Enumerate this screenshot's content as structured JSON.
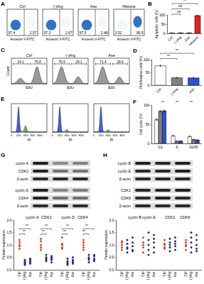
{
  "chart_data": [
    {
      "label": "B",
      "type": "bar",
      "y_label": "Apoptotic cells (%)",
      "categories": [
        "Ctrl",
        "(-)Arg",
        "Ase",
        "Histone"
      ],
      "values": [
        2.57,
        2.67,
        2.48,
        96.5
      ],
      "errors": [
        0.4,
        0.5,
        0.4,
        2.5
      ],
      "colors": [
        "#ffffff",
        "#808080",
        "#2b4fd6",
        "#e3241b"
      ],
      "ylim": [
        0,
        100
      ],
      "yticks": [
        0,
        50,
        100
      ],
      "annotations": [
        {
          "text": "ns",
          "from": "Ctrl",
          "to": "(-)Arg"
        },
        {
          "text": "ns",
          "from": "Ctrl",
          "to": "Ase"
        },
        {
          "text": "**",
          "from": "Ctrl",
          "to": "Histone"
        }
      ]
    },
    {
      "label": "D",
      "type": "bar",
      "y_label": "Proliferative cells (%)",
      "categories": [
        "Ctrl",
        "(-)Arg",
        "Ase"
      ],
      "values": [
        75.8,
        29.1,
        28.6
      ],
      "errors": [
        3,
        2,
        2
      ],
      "colors": [
        "#ffffff",
        "#808080",
        "#2b4fd6"
      ],
      "ylim": [
        0,
        100
      ],
      "yticks": [
        0,
        50,
        100
      ],
      "annotations": [
        {
          "text": "**",
          "from": "Ctrl",
          "to": "(-)Arg"
        },
        {
          "text": "**",
          "from": "Ctrl",
          "to": "Ase"
        }
      ]
    },
    {
      "label": "F",
      "type": "bar",
      "y_label": "Cell cycle (%)",
      "categories": [
        "G1",
        "S",
        "G2/M"
      ],
      "series": [
        {
          "color": "#ffffff",
          "values": [
            62,
            20,
            18
          ],
          "errors": [
            2,
            1.5,
            1.5
          ]
        },
        {
          "color": "#808080",
          "values": [
            84,
            6,
            10
          ],
          "errors": [
            2,
            1,
            1
          ]
        },
        {
          "color": "#2b4fd6",
          "values": [
            85,
            6,
            9
          ],
          "errors": [
            2,
            1,
            1
          ]
        }
      ],
      "ylim": [
        0,
        100
      ],
      "yticks": [
        0,
        50,
        100
      ],
      "annotations": [
        {
          "text": "**",
          "at": "G1"
        },
        {
          "text": "**",
          "at": "S"
        },
        {
          "text": "**",
          "at": "G2/M"
        }
      ]
    },
    {
      "type": "scatter",
      "y_label": "Protein expression",
      "groups": [
        "cyclin A",
        "CDK2",
        "cyclin D",
        "CDK4"
      ],
      "categories": [
        "Ctrl",
        "(-)Arg",
        "Ase"
      ],
      "colors": [
        "#e0452b",
        "#23307a",
        "#23307a"
      ],
      "points": [
        [
          [
            1.0,
            0.85,
            1.2,
            0.95,
            1.1
          ],
          [
            0.3,
            0.25,
            0.4,
            0.2,
            0.35
          ],
          [
            0.35,
            0.3,
            0.45,
            0.25,
            0.4
          ]
        ],
        [
          [
            1.0,
            1.25,
            0.8,
            0.9,
            1.15
          ],
          [
            0.5,
            0.4,
            0.6,
            0.35,
            0.45
          ],
          [
            0.45,
            0.55,
            0.4,
            0.3,
            0.5
          ]
        ],
        [
          [
            1.0,
            0.9,
            1.3,
            0.85,
            1.05
          ],
          [
            0.3,
            0.45,
            0.25,
            0.35,
            0.2
          ],
          [
            0.4,
            0.3,
            0.5,
            0.25,
            0.35
          ]
        ],
        [
          [
            1.0,
            1.2,
            0.8,
            1.1,
            0.9
          ],
          [
            0.5,
            0.4,
            0.6,
            0.3,
            0.45
          ],
          [
            0.55,
            0.35,
            0.45,
            0.6,
            0.4
          ]
        ]
      ],
      "ylim": [
        0,
        2
      ],
      "yticks": [
        {
          "value": 0,
          "label": "0.0"
        },
        {
          "value": 0.5,
          "label": "0.5"
        },
        {
          "value": 1,
          "label": "1.0"
        },
        {
          "value": 1.5,
          "label": "1.5"
        },
        {
          "value": 2,
          "label": "2.0"
        }
      ],
      "annotations": [
        {
          "text": "**",
          "group": "cyclin A",
          "from": "Ctrl",
          "to": "(-)Arg"
        },
        {
          "text": "**",
          "group": "cyclin A",
          "from": "Ctrl",
          "to": "Ase"
        },
        {
          "text": "**",
          "group": "CDK2",
          "from": "Ctrl",
          "to": "(-)Arg"
        },
        {
          "text": "**",
          "group": "CDK2",
          "from": "Ctrl",
          "to": "Ase"
        },
        {
          "text": "**",
          "group": "cyclin D",
          "from": "Ctrl",
          "to": "(-)Arg"
        },
        {
          "text": "**",
          "group": "cyclin D",
          "from": "Ctrl",
          "to": "Ase"
        },
        {
          "text": "**",
          "group": "CDK4",
          "from": "Ctrl",
          "to": "(-)Arg"
        },
        {
          "text": "**",
          "group": "CDK4",
          "from": "Ctrl",
          "to": "Ase"
        }
      ]
    },
    {
      "type": "scatter",
      "y_label": "Protein expression",
      "groups": [
        "cyclin B",
        "cyclin E",
        "CDK1",
        "CDK6"
      ],
      "categories": [
        "Ctrl",
        "(-)Arg",
        "Ase"
      ],
      "colors": [
        "#e0452b",
        "#23307a",
        "#23307a"
      ],
      "points": [
        [
          [
            1.0,
            0.9,
            1.15,
            0.8,
            1.1
          ],
          [
            0.9,
            1.2,
            0.7,
            1.05,
            0.85
          ],
          [
            1.1,
            0.8,
            1.3,
            0.95,
            0.75
          ]
        ],
        [
          [
            1.0,
            1.3,
            0.7,
            1.1,
            0.9
          ],
          [
            1.2,
            0.8,
            1.5,
            1.0,
            0.6
          ],
          [
            1.1,
            1.4,
            0.7,
            0.9,
            1.25
          ]
        ],
        [
          [
            1.0,
            0.85,
            1.2,
            0.9,
            1.05
          ],
          [
            0.9,
            1.1,
            0.75,
            1.0,
            1.25
          ],
          [
            1.05,
            0.8,
            1.15,
            0.95,
            1.3
          ]
        ],
        [
          [
            1.0,
            1.2,
            0.8,
            0.95,
            1.1
          ],
          [
            1.3,
            0.9,
            1.1,
            0.7,
            1.5
          ],
          [
            1.2,
            0.85,
            1.4,
            1.0,
            0.75
          ]
        ]
      ],
      "ylim": [
        0,
        2
      ],
      "yticks": [
        {
          "value": 0,
          "label": "0.0"
        },
        {
          "value": 0.5,
          "label": "0.5"
        },
        {
          "value": 1,
          "label": "1.0"
        },
        {
          "value": 1.5,
          "label": "1.5"
        },
        {
          "value": 2,
          "label": "2.0"
        }
      ]
    }
  ],
  "panels": {
    "A": {
      "label": "A",
      "x_label": "Annexin V-FITC",
      "plots": [
        {
          "title": "Ctrl",
          "left": 97.4,
          "right": 2.57
        },
        {
          "title": "(-)Arg",
          "left": 97.3,
          "right": 2.67
        },
        {
          "title": "Ase",
          "left": 97.5,
          "right": 2.48
        },
        {
          "title": "Histone",
          "left": 3.52,
          "right": 96.5
        }
      ]
    },
    "C": {
      "label": "C",
      "x_label": "EdU",
      "y_label": "Count",
      "plots": [
        {
          "title": "Ctrl",
          "left": 24.1,
          "right": 75.8
        },
        {
          "title": "(-)Arg",
          "left": 70.9,
          "right": 29.1
        },
        {
          "title": "Ase",
          "left": 71.4,
          "right": 28.6
        }
      ]
    },
    "E": {
      "label": "E",
      "x_label": "PI",
      "xlim": [
        0,
        1000
      ],
      "xticks": [
        0,
        200,
        400,
        600,
        800
      ]
    },
    "blots": [
      {
        "label": "G",
        "rows": [
          "cyclin A",
          "CDK2",
          "β-actin",
          "cyclin D",
          "CDK4",
          "β-actin"
        ]
      },
      {
        "label": "H",
        "rows": [
          "cyclin B",
          "cyclin E",
          "β-actin",
          "CDK1",
          "CDK6",
          "β-actin"
        ]
      }
    ]
  }
}
